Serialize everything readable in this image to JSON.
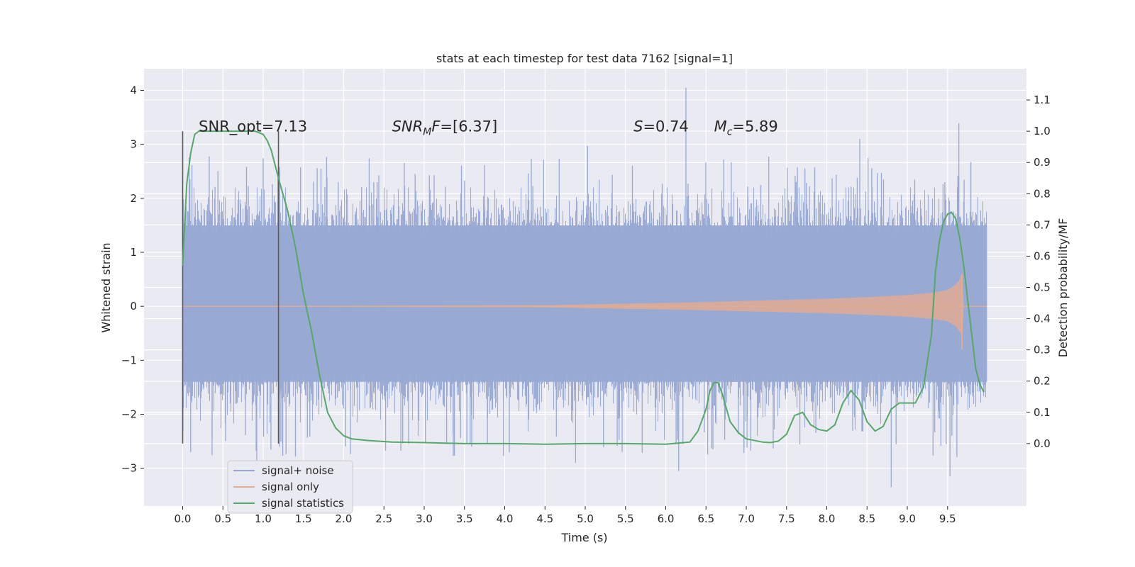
{
  "chart_data": {
    "type": "line",
    "title": "stats at each timestep for test data 7162 [signal=1]",
    "xlabel": "Time (s)",
    "ylabel": "Whitened strain",
    "ylabel_right": "Detection probability/MF",
    "xlim": [
      -0.48,
      10.48
    ],
    "ylim": [
      -3.7,
      4.4
    ],
    "ylim_right": [
      -0.2,
      1.2
    ],
    "x_ticks": [
      "0.0",
      "0.5",
      "1.0",
      "1.5",
      "2.0",
      "2.5",
      "3.0",
      "3.5",
      "4.0",
      "4.5",
      "5.0",
      "5.5",
      "6.0",
      "6.5",
      "7.0",
      "7.5",
      "8.0",
      "8.5",
      "9.0",
      "9.5"
    ],
    "y_ticks": [
      "−3",
      "−2",
      "−1",
      "0",
      "1",
      "2",
      "3",
      "4"
    ],
    "y_ticks_right": [
      "0.0",
      "0.1",
      "0.2",
      "0.3",
      "0.4",
      "0.5",
      "0.6",
      "0.7",
      "0.8",
      "0.9",
      "1.0",
      "1.1"
    ],
    "grid": true,
    "legend": {
      "position": "lower-left",
      "entries": [
        {
          "label": "signal+ noise",
          "color": "#98a9d3"
        },
        {
          "label": "signal only",
          "color": "#e0ac93"
        },
        {
          "label": "signal statistics",
          "color": "#55a868"
        }
      ]
    },
    "annotations": [
      {
        "type": "plain",
        "text": "SNR_opt=7.13"
      },
      {
        "type": "snr_mf",
        "base": "SNR",
        "sub": "M",
        "base2": "F",
        "value": "=[6.37]"
      },
      {
        "type": "italic",
        "base": "S",
        "value": "=0.74"
      },
      {
        "type": "subscript",
        "base": "M",
        "sub": "c",
        "value": "=5.89"
      }
    ],
    "window_markers": [
      0.0,
      1.19
    ],
    "series": [
      {
        "name": "signal+ noise",
        "color": "#98a9d3",
        "x_range": [
          0.0,
          9.99
        ],
        "band": [
          -1.4,
          1.5
        ],
        "spike_extremes": [
          {
            "x": 6.25,
            "y": 4.05
          },
          {
            "x": 9.64,
            "y": 3.39
          },
          {
            "x": 8.8,
            "y": -3.35
          },
          {
            "x": 9.53,
            "y": -3.15
          },
          {
            "x": 8.41,
            "y": 3.1
          },
          {
            "x": 5.03,
            "y": 2.97
          },
          {
            "x": 1.0,
            "y": 2.74
          },
          {
            "x": 0.1,
            "y": -2.7
          },
          {
            "x": 0.92,
            "y": -3.0
          },
          {
            "x": 6.16,
            "y": -3.05
          },
          {
            "x": 4.88,
            "y": -2.9
          },
          {
            "x": 3.59,
            "y": -2.6
          }
        ]
      },
      {
        "name": "signal only",
        "color": "#e0ac93",
        "x": [
          0.0,
          4.5,
          5.5,
          6.5,
          7.0,
          7.5,
          8.0,
          8.5,
          9.0,
          9.3,
          9.5,
          9.6,
          9.65,
          9.68,
          9.7,
          9.99
        ],
        "amplitude": [
          0.0,
          0.02,
          0.05,
          0.08,
          0.1,
          0.12,
          0.14,
          0.17,
          0.21,
          0.25,
          0.3,
          0.4,
          0.5,
          0.6,
          0.0,
          0.0
        ]
      },
      {
        "name": "signal statistics",
        "color": "#55a868",
        "axis": "right",
        "x": [
          0.0,
          0.05,
          0.1,
          0.15,
          0.2,
          0.3,
          0.5,
          0.7,
          0.9,
          1.0,
          1.05,
          1.1,
          1.15,
          1.2,
          1.3,
          1.4,
          1.5,
          1.6,
          1.7,
          1.8,
          1.9,
          2.0,
          2.1,
          2.3,
          2.6,
          3.0,
          3.5,
          4.0,
          4.5,
          5.0,
          5.5,
          6.0,
          6.3,
          6.4,
          6.5,
          6.55,
          6.6,
          6.65,
          6.7,
          6.8,
          6.9,
          7.0,
          7.2,
          7.3,
          7.4,
          7.5,
          7.6,
          7.7,
          7.8,
          7.9,
          8.0,
          8.1,
          8.2,
          8.3,
          8.4,
          8.5,
          8.6,
          8.7,
          8.8,
          8.9,
          9.0,
          9.1,
          9.2,
          9.3,
          9.35,
          9.4,
          9.45,
          9.5,
          9.55,
          9.6,
          9.65,
          9.7,
          9.75,
          9.8,
          9.85,
          9.9,
          9.95
        ],
        "values": [
          0.57,
          0.83,
          0.93,
          0.99,
          1.0,
          1.0,
          1.0,
          1.0,
          1.0,
          0.99,
          0.97,
          0.94,
          0.89,
          0.84,
          0.75,
          0.63,
          0.48,
          0.36,
          0.22,
          0.1,
          0.05,
          0.025,
          0.015,
          0.01,
          0.005,
          0.003,
          0.0,
          0.0,
          -0.002,
          0.0,
          0.0,
          -0.002,
          0.005,
          0.04,
          0.11,
          0.17,
          0.195,
          0.195,
          0.16,
          0.07,
          0.035,
          0.015,
          0.005,
          0.003,
          0.008,
          0.03,
          0.09,
          0.1,
          0.06,
          0.045,
          0.04,
          0.06,
          0.13,
          0.17,
          0.14,
          0.07,
          0.04,
          0.055,
          0.11,
          0.13,
          0.13,
          0.13,
          0.18,
          0.35,
          0.55,
          0.65,
          0.71,
          0.735,
          0.74,
          0.72,
          0.66,
          0.57,
          0.46,
          0.35,
          0.24,
          0.19,
          0.165
        ]
      }
    ]
  }
}
